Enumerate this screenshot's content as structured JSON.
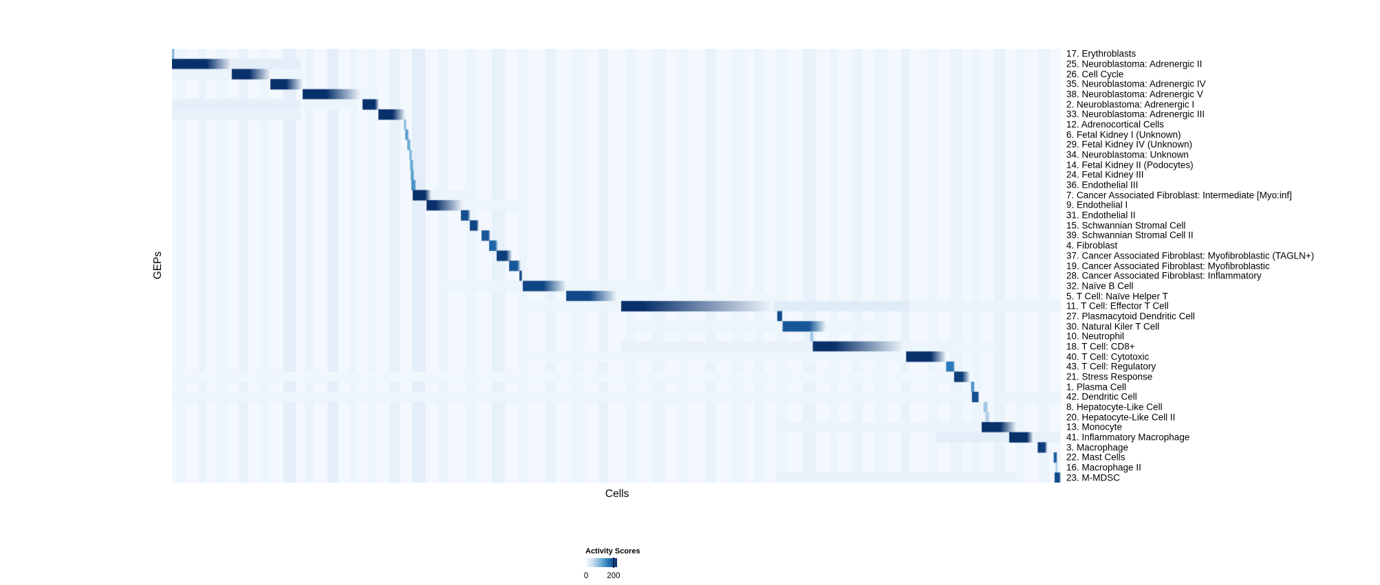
{
  "chart_data": {
    "type": "heatmap",
    "title": "",
    "xlabel": "Cells",
    "ylabel": "GEPs",
    "legend_position": "bottom-center",
    "grid": false,
    "colormap": "Blues",
    "colormap_stops": [
      "#f7fbff",
      "#c6dbef",
      "#6baed6",
      "#2171b5",
      "#08306b"
    ],
    "colorbar": {
      "title": "Activity Scores",
      "range": [
        0,
        225
      ],
      "ticks": [
        0,
        200
      ],
      "tick_labels": [
        "0",
        "200"
      ]
    },
    "n_rows": 43,
    "row_order_note": "cells (columns) grouped by max-activity GEP producing diagonal blocks",
    "rows": [
      {
        "label": "17. Erythroblasts",
        "block": [
          0.0,
          0.0023,
          0.0031,
          0.42
        ]
      },
      {
        "label": "25. Neuroblastoma: Adrenergic II",
        "block": [
          0.0,
          0.039,
          0.067,
          1.0
        ],
        "streaks": [
          [
            0.0,
            0.145,
            0.1
          ]
        ]
      },
      {
        "label": "26. Cell Cycle",
        "block": [
          0.0673,
          0.0867,
          0.1107,
          1.0
        ],
        "streaks": [
          [
            0.0,
            0.067,
            0.06
          ],
          [
            0.112,
            0.148,
            0.05
          ]
        ]
      },
      {
        "label": "35. Neuroblastoma: Adrenergic IV",
        "block": [
          0.1107,
          0.1285,
          0.147,
          1.0
        ]
      },
      {
        "label": "38. Neuroblastoma: Adrenergic V",
        "block": [
          0.147,
          0.1734,
          0.2121,
          1.0
        ],
        "streaks": [
          [
            0.2121,
            0.232,
            0.05
          ]
        ]
      },
      {
        "label": "2. Neuroblastoma: Adrenergic I",
        "block": [
          0.2144,
          0.2283,
          0.233,
          1.0
        ],
        "streaks": [
          [
            0.0,
            0.145,
            0.09
          ],
          [
            0.147,
            0.21,
            0.05
          ]
        ]
      },
      {
        "label": "33. Neuroblastoma: Adrenergic III",
        "block": [
          0.2322,
          0.2484,
          0.2624,
          1.0
        ],
        "streaks": [
          [
            0.0,
            0.145,
            0.07
          ]
        ]
      },
      {
        "label": "12. Adrenocortical Cells",
        "block": [
          0.2608,
          0.2632,
          0.2639,
          0.4
        ]
      },
      {
        "label": "6. Fetal Kidney I (Unknown)",
        "block": [
          0.2624,
          0.2655,
          0.2663,
          0.55
        ]
      },
      {
        "label": "29. Fetal Kidney IV (Unknown)",
        "block": [
          0.2647,
          0.2678,
          0.2686,
          0.5
        ]
      },
      {
        "label": "34. Neuroblastoma: Unknown",
        "block": [
          0.267,
          0.2693,
          0.2701,
          0.45
        ]
      },
      {
        "label": "14. Fetal Kidney II (Podocytes)",
        "block": [
          0.2678,
          0.2709,
          0.2717,
          0.5
        ]
      },
      {
        "label": "24. Fetal Kidney III",
        "block": [
          0.2686,
          0.2717,
          0.2724,
          0.55
        ]
      },
      {
        "label": "36. Endothelial III",
        "block": [
          0.2693,
          0.2732,
          0.2748,
          0.62
        ]
      },
      {
        "label": "7. Cancer Associated Fibroblast: Intermediate [Myo:inf]",
        "block": [
          0.2709,
          0.2848,
          0.2918,
          1.0
        ],
        "streaks": [
          [
            0.2918,
            0.33,
            0.06
          ]
        ]
      },
      {
        "label": "9. Endothelial I",
        "block": [
          0.2864,
          0.2964,
          0.3274,
          1.0
        ],
        "streaks": [
          [
            0.3274,
            0.4,
            0.05
          ]
        ]
      },
      {
        "label": "31. Endothelial II",
        "block": [
          0.3251,
          0.3328,
          0.3359,
          0.88
        ]
      },
      {
        "label": "15. Schwannian Stromal Cell",
        "block": [
          0.3351,
          0.3429,
          0.3452,
          0.92
        ]
      },
      {
        "label": "39. Schwannian Stromal Cell II",
        "block": [
          0.3483,
          0.356,
          0.3583,
          0.85
        ]
      },
      {
        "label": "4. Fibroblast",
        "block": [
          0.3568,
          0.3638,
          0.3669,
          0.8
        ]
      },
      {
        "label": "37. Cancer Associated Fibroblast: Myofibroblastic (TAGLN+)",
        "block": [
          0.3653,
          0.3762,
          0.3824,
          0.95
        ]
      },
      {
        "label": "19. Cancer Associated Fibroblast: Myofibroblastic",
        "block": [
          0.3793,
          0.3885,
          0.3924,
          0.85
        ]
      },
      {
        "label": "28. Cancer Associated Fibroblast: Inflammatory",
        "block": [
          0.3909,
          0.3932,
          0.394,
          0.9
        ]
      },
      {
        "label": "32. Naïve B Cell",
        "block": [
          0.3947,
          0.418,
          0.4435,
          0.92
        ],
        "streaks": [
          [
            0.3,
            0.3947,
            0.05
          ],
          [
            0.4435,
            0.55,
            0.05
          ]
        ]
      },
      {
        "label": "5. T Cell: Naïve Helper T",
        "block": [
          0.4435,
          0.4699,
          0.5008,
          0.9
        ],
        "streaks": [
          [
            0.5,
            0.68,
            0.04
          ]
        ]
      },
      {
        "label": "11. T Cell: Effector T Cell",
        "block": [
          0.5054,
          0.53,
          0.677,
          1.0
        ],
        "streaks": [
          [
            0.677,
            0.83,
            0.12
          ],
          [
            0.83,
            1.0,
            0.06
          ],
          [
            0.4,
            0.5054,
            0.05
          ]
        ]
      },
      {
        "label": "27. Plasmacytoid Dendritic Cell",
        "block": [
          0.681,
          0.686,
          0.687,
          0.9
        ]
      },
      {
        "label": "30. Natural Kiler T Cell",
        "block": [
          0.687,
          0.717,
          0.736,
          0.85
        ],
        "streaks": [
          [
            0.52,
            0.687,
            0.05
          ],
          [
            0.736,
            0.8,
            0.05
          ]
        ]
      },
      {
        "label": "10. Neutrophil",
        "block": [
          0.718,
          0.721,
          0.722,
          0.35
        ]
      },
      {
        "label": "18. T Cell: CD8+",
        "block": [
          0.721,
          0.745,
          0.824,
          1.0
        ],
        "streaks": [
          [
            0.5054,
            0.721,
            0.07
          ],
          [
            0.824,
            0.93,
            0.05
          ]
        ]
      },
      {
        "label": "40. T Cell: Cytotoxic",
        "block": [
          0.826,
          0.854,
          0.871,
          1.0
        ],
        "streaks": [
          [
            0.4,
            0.826,
            0.04
          ]
        ]
      },
      {
        "label": "43. T Cell: Regulatory",
        "block": [
          0.871,
          0.879,
          0.881,
          0.72
        ]
      },
      {
        "label": "21. Stress Response",
        "block": [
          0.88,
          0.889,
          0.898,
          0.95
        ],
        "streaks": [
          [
            0.105,
            0.14,
            0.22
          ],
          [
            0.0,
            0.88,
            0.04
          ]
        ]
      },
      {
        "label": "1. Plasma Cell",
        "block": [
          0.899,
          0.9025,
          0.903,
          0.6
        ]
      },
      {
        "label": "42. Dendritic Cell",
        "block": [
          0.9,
          0.907,
          0.908,
          0.88
        ],
        "streaks": [
          [
            0.0,
            0.9,
            0.05
          ],
          [
            0.93,
            1.0,
            0.06
          ]
        ]
      },
      {
        "label": "8. Hepatocyte-Like Cell",
        "block": [
          0.913,
          0.917,
          0.918,
          0.35
        ]
      },
      {
        "label": "20. Hepatocyte-Like Cell II",
        "block": [
          0.915,
          0.919,
          0.92,
          0.3
        ]
      },
      {
        "label": "13. Monocyte",
        "block": [
          0.911,
          0.932,
          0.95,
          1.0
        ],
        "streaks": [
          [
            0.68,
            0.911,
            0.06
          ]
        ]
      },
      {
        "label": "41. Inflammatory Macrophage",
        "block": [
          0.942,
          0.962,
          0.969,
          1.0
        ],
        "streaks": [
          [
            0.86,
            0.942,
            0.1
          ],
          [
            0.97,
            1.0,
            0.08
          ]
        ]
      },
      {
        "label": "3. Macrophage",
        "block": [
          0.974,
          0.982,
          0.985,
          0.95
        ]
      },
      {
        "label": "22. Mast Cells",
        "block": [
          0.992,
          0.995,
          0.996,
          0.82
        ]
      },
      {
        "label": "16. Macrophage II",
        "block": [
          0.994,
          0.996,
          0.997,
          0.3
        ]
      },
      {
        "label": "23. M-MDSC",
        "block": [
          0.993,
          0.9985,
          1.0,
          0.9
        ],
        "streaks": [
          [
            0.68,
            0.95,
            0.07
          ]
        ]
      }
    ],
    "background_bands": [
      [
        0.005,
        0.01,
        0.05
      ],
      [
        0.03,
        0.008,
        0.07
      ],
      [
        0.05,
        0.012,
        0.05
      ],
      [
        0.075,
        0.01,
        0.08
      ],
      [
        0.1,
        0.008,
        0.05
      ],
      [
        0.125,
        0.015,
        0.09
      ],
      [
        0.15,
        0.01,
        0.06
      ],
      [
        0.175,
        0.012,
        0.1
      ],
      [
        0.2,
        0.008,
        0.06
      ],
      [
        0.22,
        0.01,
        0.05
      ],
      [
        0.245,
        0.012,
        0.08
      ],
      [
        0.27,
        0.015,
        0.1
      ],
      [
        0.3,
        0.01,
        0.06
      ],
      [
        0.33,
        0.012,
        0.05
      ],
      [
        0.36,
        0.015,
        0.08
      ],
      [
        0.39,
        0.01,
        0.05
      ],
      [
        0.42,
        0.012,
        0.07
      ],
      [
        0.45,
        0.015,
        0.05
      ],
      [
        0.48,
        0.01,
        0.08
      ],
      [
        0.51,
        0.012,
        0.05
      ],
      [
        0.54,
        0.015,
        0.06
      ],
      [
        0.57,
        0.01,
        0.05
      ],
      [
        0.6,
        0.012,
        0.07
      ],
      [
        0.63,
        0.015,
        0.05
      ],
      [
        0.655,
        0.01,
        0.06
      ],
      [
        0.68,
        0.012,
        0.05
      ],
      [
        0.71,
        0.015,
        0.07
      ],
      [
        0.74,
        0.01,
        0.05
      ],
      [
        0.765,
        0.012,
        0.06
      ],
      [
        0.79,
        0.015,
        0.05
      ],
      [
        0.82,
        0.01,
        0.07
      ],
      [
        0.85,
        0.012,
        0.05
      ],
      [
        0.875,
        0.015,
        0.06
      ],
      [
        0.9,
        0.01,
        0.05
      ],
      [
        0.925,
        0.012,
        0.07
      ],
      [
        0.95,
        0.01,
        0.05
      ],
      [
        0.975,
        0.012,
        0.06
      ]
    ]
  }
}
